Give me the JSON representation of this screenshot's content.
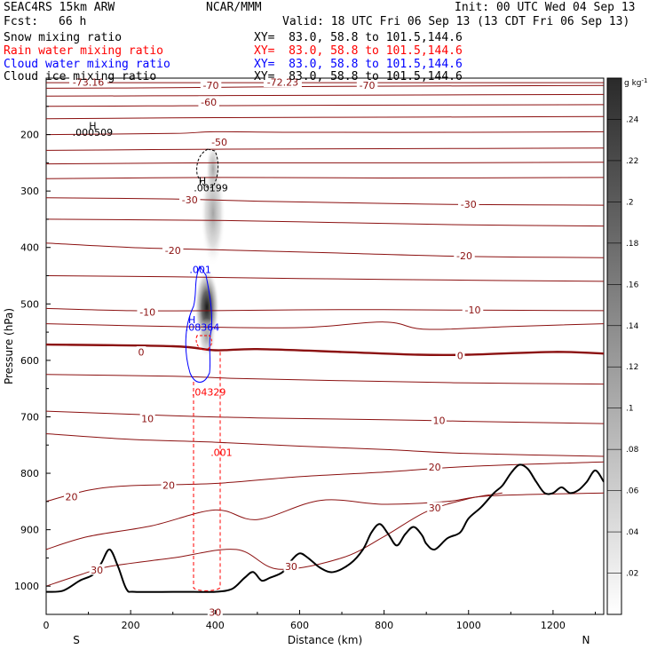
{
  "header": {
    "model": "SEAC4RS 15km ARW",
    "org": "NCAR/MMM",
    "init": "Init: 00 UTC Wed 04 Sep 13",
    "fcst_label": "Fcst:",
    "fcst_value": "66 h",
    "valid": "Valid: 18 UTC Fri 06 Sep 13 (13 CDT Fri 06 Sep 13)"
  },
  "fields": [
    {
      "name": "Snow mixing ratio",
      "xy": "XY=  83.0, 58.8 to 101.5,144.6",
      "color": "#000000"
    },
    {
      "name": "Rain water mixing ratio",
      "xy": "XY=  83.0, 58.8 to 101.5,144.6",
      "color": "#ff0000"
    },
    {
      "name": "Cloud water mixing ratio",
      "xy": "XY=  83.0, 58.8 to 101.5,144.6",
      "color": "#0000ff"
    },
    {
      "name": "Cloud ice mixing ratio",
      "xy": "XY=  83.0, 58.8 to 101.5,144.6",
      "color": "#000000"
    }
  ],
  "chart_data": {
    "type": "cross-section contour",
    "xlabel": "Distance (km)",
    "ylabel": "Pressure (hPa)",
    "xlim": [
      0,
      1320
    ],
    "ylim": [
      1050,
      100
    ],
    "x_ticks": [
      0,
      200,
      400,
      600,
      800,
      1000,
      1200
    ],
    "y_ticks": [
      200,
      300,
      400,
      500,
      600,
      700,
      800,
      900,
      1000
    ],
    "end_labels": {
      "left": "S",
      "right": "N"
    },
    "colorbar": {
      "unit": "g kg",
      "unit_exp": "-1",
      "ticks": [
        0.02,
        0.04,
        0.06,
        0.08,
        0.1,
        0.12,
        0.14,
        0.16,
        0.18,
        0.2,
        0.22,
        0.24
      ],
      "tick_labels": [
        ".02",
        ".04",
        ".06",
        ".08",
        ".1",
        ".12",
        ".14",
        ".16",
        ".18",
        ".2",
        ".22",
        ".24"
      ],
      "max": 0.26
    },
    "temperature_contour_labels": [
      {
        "text": "-73.16",
        "x": 100,
        "p": 108
      },
      {
        "text": "-72.23",
        "x": 560,
        "p": 108
      },
      {
        "text": "-70",
        "x": 390,
        "p": 113
      },
      {
        "text": "-70",
        "x": 760,
        "p": 113
      },
      {
        "text": "-60",
        "x": 385,
        "p": 143
      },
      {
        "text": "-50",
        "x": 410,
        "p": 214
      },
      {
        "text": "-30",
        "x": 340,
        "p": 316
      },
      {
        "text": "-30",
        "x": 1000,
        "p": 324
      },
      {
        "text": "-20",
        "x": 300,
        "p": 406
      },
      {
        "text": "-20",
        "x": 990,
        "p": 415
      },
      {
        "text": "-10",
        "x": 240,
        "p": 515
      },
      {
        "text": "-10",
        "x": 1010,
        "p": 511
      },
      {
        "text": "0",
        "x": 225,
        "p": 586
      },
      {
        "text": "0",
        "x": 980,
        "p": 592
      },
      {
        "text": "10",
        "x": 240,
        "p": 704
      },
      {
        "text": "10",
        "x": 930,
        "p": 707
      },
      {
        "text": "20",
        "x": 290,
        "p": 822
      },
      {
        "text": "20",
        "x": 920,
        "p": 790
      },
      {
        "text": "20",
        "x": 60,
        "p": 842
      },
      {
        "text": "30",
        "x": 920,
        "p": 862
      },
      {
        "text": "30",
        "x": 580,
        "p": 966
      },
      {
        "text": "30",
        "x": 120,
        "p": 972
      },
      {
        "text": "30",
        "x": 400,
        "p": 1047
      }
    ],
    "annotations": [
      {
        "text": "H",
        "x": 110,
        "p": 184,
        "color": "#000000"
      },
      {
        "text": ".000509",
        "x": 110,
        "p": 196,
        "color": "#000000"
      },
      {
        "text": "H",
        "x": 370,
        "p": 282,
        "color": "#000000"
      },
      {
        "text": ".00199",
        "x": 390,
        "p": 294,
        "color": "#000000"
      },
      {
        "text": ".001",
        "x": 365,
        "p": 439,
        "color": "#0000ff"
      },
      {
        "text": "H",
        "x": 345,
        "p": 528,
        "color": "#0000ff"
      },
      {
        "text": ".08364",
        "x": 370,
        "p": 541,
        "color": "#0000ff"
      },
      {
        "text": ".04329",
        "x": 385,
        "p": 656,
        "color": "#ff0000"
      },
      {
        "text": ".001",
        "x": 415,
        "p": 763,
        "color": "#ff0000"
      }
    ],
    "terrain": [
      [
        0,
        1010
      ],
      [
        40,
        1008
      ],
      [
        80,
        990
      ],
      [
        110,
        980
      ],
      [
        130,
        960
      ],
      [
        150,
        935
      ],
      [
        170,
        965
      ],
      [
        190,
        1005
      ],
      [
        210,
        1010
      ],
      [
        300,
        1010
      ],
      [
        350,
        1010
      ],
      [
        400,
        1010
      ],
      [
        440,
        1005
      ],
      [
        470,
        985
      ],
      [
        490,
        975
      ],
      [
        510,
        990
      ],
      [
        530,
        985
      ],
      [
        560,
        975
      ],
      [
        580,
        955
      ],
      [
        600,
        942
      ],
      [
        620,
        950
      ],
      [
        650,
        968
      ],
      [
        680,
        975
      ],
      [
        720,
        960
      ],
      [
        750,
        935
      ],
      [
        770,
        905
      ],
      [
        790,
        890
      ],
      [
        810,
        908
      ],
      [
        830,
        928
      ],
      [
        850,
        908
      ],
      [
        870,
        895
      ],
      [
        890,
        910
      ],
      [
        900,
        925
      ],
      [
        920,
        935
      ],
      [
        950,
        915
      ],
      [
        980,
        905
      ],
      [
        1000,
        880
      ],
      [
        1030,
        860
      ],
      [
        1060,
        835
      ],
      [
        1080,
        822
      ],
      [
        1100,
        800
      ],
      [
        1120,
        785
      ],
      [
        1140,
        792
      ],
      [
        1160,
        815
      ],
      [
        1180,
        835
      ],
      [
        1200,
        835
      ],
      [
        1220,
        825
      ],
      [
        1240,
        835
      ],
      [
        1260,
        830
      ],
      [
        1280,
        815
      ],
      [
        1300,
        795
      ],
      [
        1320,
        815
      ]
    ],
    "isotherms": [
      {
        "level": "-70",
        "pts": [
          [
            0,
            108
          ],
          [
            200,
            108
          ],
          [
            400,
            108
          ],
          [
            600,
            108
          ],
          [
            800,
            108
          ],
          [
            1000,
            108
          ],
          [
            1200,
            108
          ],
          [
            1320,
            108
          ]
        ]
      },
      {
        "level": "-70b",
        "pts": [
          [
            0,
            118
          ],
          [
            300,
            117
          ],
          [
            600,
            115
          ],
          [
            900,
            114
          ],
          [
            1320,
            113
          ]
        ]
      },
      {
        "level": "-60a",
        "pts": [
          [
            0,
            132
          ],
          [
            400,
            131
          ],
          [
            800,
            130
          ],
          [
            1320,
            129
          ]
        ]
      },
      {
        "level": "-60",
        "pts": [
          [
            0,
            150
          ],
          [
            300,
            149
          ],
          [
            700,
            148
          ],
          [
            1320,
            147
          ]
        ]
      },
      {
        "level": "-55",
        "pts": [
          [
            0,
            172
          ],
          [
            400,
            170
          ],
          [
            900,
            169
          ],
          [
            1320,
            168
          ]
        ]
      },
      {
        "level": "-50",
        "pts": [
          [
            0,
            200
          ],
          [
            300,
            198
          ],
          [
            400,
            195
          ],
          [
            600,
            196
          ],
          [
            1000,
            196
          ],
          [
            1320,
            195
          ]
        ]
      },
      {
        "level": "-45",
        "pts": [
          [
            0,
            228
          ],
          [
            400,
            226
          ],
          [
            800,
            225
          ],
          [
            1320,
            224
          ]
        ]
      },
      {
        "level": "-40",
        "pts": [
          [
            0,
            252
          ],
          [
            400,
            250
          ],
          [
            900,
            250
          ],
          [
            1320,
            249
          ]
        ]
      },
      {
        "level": "-35",
        "pts": [
          [
            0,
            278
          ],
          [
            400,
            276
          ],
          [
            800,
            277
          ],
          [
            1320,
            276
          ]
        ]
      },
      {
        "level": "-30",
        "pts": [
          [
            0,
            312
          ],
          [
            300,
            314
          ],
          [
            500,
            318
          ],
          [
            800,
            322
          ],
          [
            1000,
            324
          ],
          [
            1320,
            325
          ]
        ]
      },
      {
        "level": "-25",
        "pts": [
          [
            0,
            350
          ],
          [
            400,
            352
          ],
          [
            700,
            356
          ],
          [
            1000,
            360
          ],
          [
            1320,
            362
          ]
        ]
      },
      {
        "level": "-20",
        "pts": [
          [
            0,
            392
          ],
          [
            200,
            400
          ],
          [
            400,
            404
          ],
          [
            700,
            410
          ],
          [
            1000,
            416
          ],
          [
            1320,
            418
          ]
        ]
      },
      {
        "level": "-15",
        "pts": [
          [
            0,
            450
          ],
          [
            300,
            452
          ],
          [
            600,
            455
          ],
          [
            1000,
            458
          ],
          [
            1320,
            460
          ]
        ]
      },
      {
        "level": "-10",
        "pts": [
          [
            0,
            508
          ],
          [
            200,
            512
          ],
          [
            400,
            512
          ],
          [
            700,
            510
          ],
          [
            1000,
            511
          ],
          [
            1320,
            512
          ]
        ]
      },
      {
        "level": "-5",
        "pts": [
          [
            0,
            535
          ],
          [
            300,
            540
          ],
          [
            600,
            542
          ],
          [
            800,
            532
          ],
          [
            900,
            545
          ],
          [
            1100,
            540
          ],
          [
            1320,
            535
          ]
        ]
      },
      {
        "level": "0",
        "pts": [
          [
            0,
            572
          ],
          [
            300,
            575
          ],
          [
            400,
            582
          ],
          [
            500,
            580
          ],
          [
            700,
            585
          ],
          [
            880,
            590
          ],
          [
            1000,
            590
          ],
          [
            1200,
            585
          ],
          [
            1320,
            588
          ]
        ]
      },
      {
        "level": "5",
        "pts": [
          [
            0,
            625
          ],
          [
            300,
            628
          ],
          [
            450,
            632
          ],
          [
            700,
            636
          ],
          [
            1000,
            640
          ],
          [
            1320,
            642
          ]
        ]
      },
      {
        "level": "10",
        "pts": [
          [
            0,
            690
          ],
          [
            300,
            698
          ],
          [
            500,
            702
          ],
          [
            800,
            705
          ],
          [
            1000,
            708
          ],
          [
            1320,
            712
          ]
        ]
      },
      {
        "level": "15",
        "pts": [
          [
            0,
            730
          ],
          [
            200,
            740
          ],
          [
            400,
            745
          ],
          [
            600,
            752
          ],
          [
            800,
            758
          ],
          [
            1000,
            765
          ],
          [
            1320,
            770
          ]
        ]
      },
      {
        "level": "20",
        "pts": [
          [
            0,
            850
          ],
          [
            100,
            830
          ],
          [
            200,
            822
          ],
          [
            400,
            818
          ],
          [
            600,
            806
          ],
          [
            800,
            798
          ],
          [
            1000,
            788
          ],
          [
            1320,
            780
          ]
        ]
      },
      {
        "level": "25",
        "pts": [
          [
            0,
            935
          ],
          [
            100,
            912
          ],
          [
            250,
            893
          ],
          [
            400,
            865
          ],
          [
            500,
            882
          ],
          [
            650,
            848
          ],
          [
            800,
            855
          ],
          [
            950,
            850
          ],
          [
            1050,
            840
          ],
          [
            1320,
            835
          ]
        ]
      },
      {
        "level": "30",
        "pts": [
          [
            0,
            1000
          ],
          [
            80,
            980
          ],
          [
            150,
            965
          ],
          [
            300,
            950
          ],
          [
            450,
            935
          ],
          [
            550,
            970
          ],
          [
            700,
            950
          ],
          [
            800,
            912
          ],
          [
            900,
            868
          ],
          [
            1000,
            845
          ],
          [
            1080,
            835
          ]
        ]
      }
    ]
  }
}
